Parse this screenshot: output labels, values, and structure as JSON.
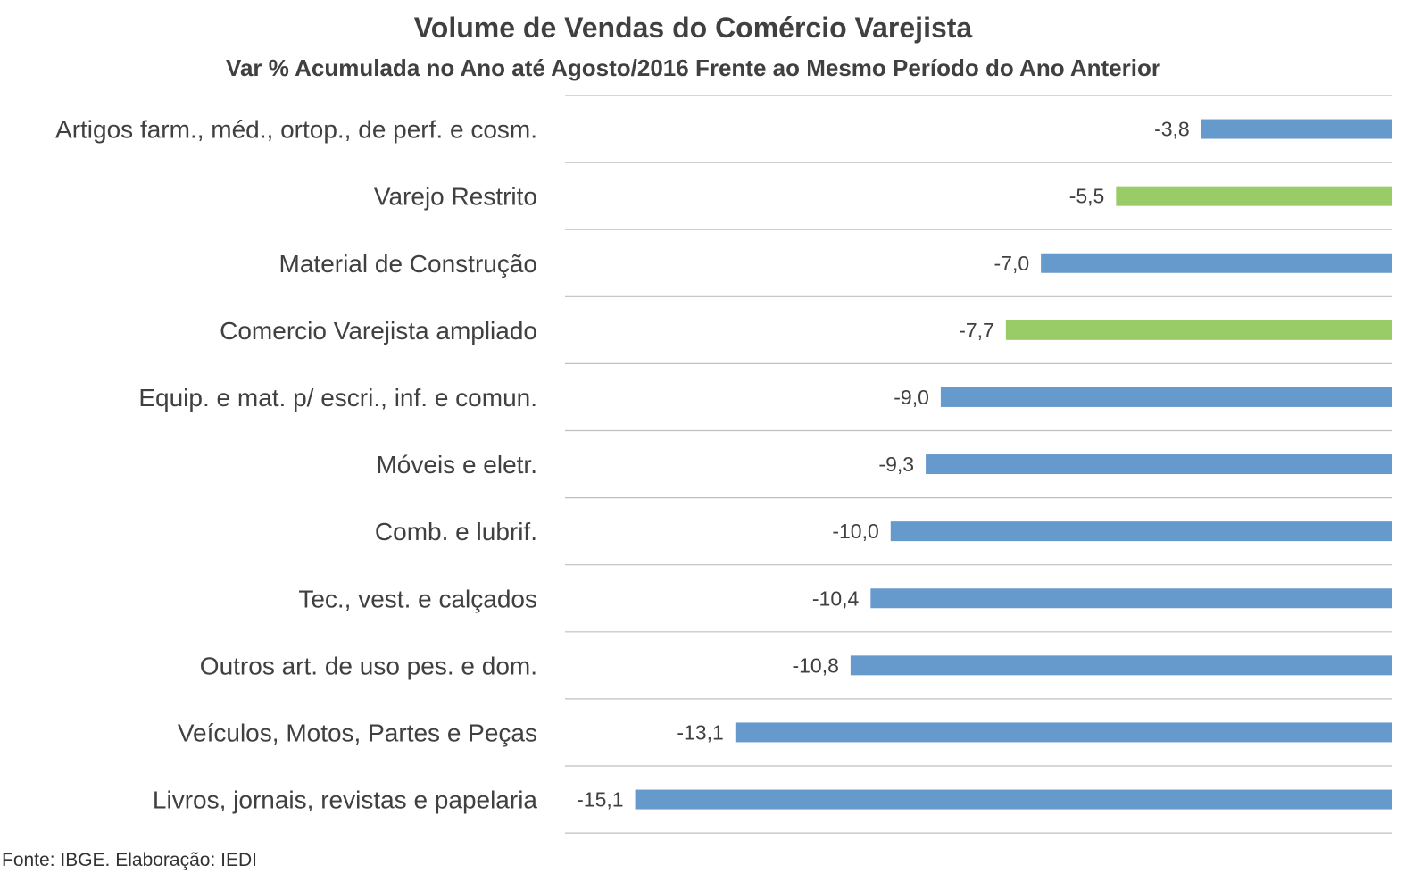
{
  "chart_data": {
    "type": "bar",
    "orientation": "horizontal",
    "title": "Volume de Vendas do Comércio Varejista",
    "subtitle": "Var % Acumulada no Ano até Agosto/2016 Frente ao Mesmo Período do Ano Anterior",
    "categories": [
      "Artigos farm., méd., ortop., de perf. e cosm.",
      "Varejo Restrito",
      "Material de Construção",
      "Comercio Varejista ampliado",
      "Equip. e mat. p/ escri., inf. e comun.",
      "Móveis e eletr.",
      "Comb. e lubrif.",
      "Tec., vest. e calçados",
      "Outros art. de uso pes. e dom.",
      "Veículos, Motos, Partes e Peças",
      "Livros, jornais, revistas e papelaria"
    ],
    "values": [
      -3.8,
      -5.5,
      -7.0,
      -7.7,
      -9.0,
      -9.3,
      -10.0,
      -10.4,
      -10.8,
      -13.1,
      -15.1
    ],
    "value_labels": [
      "-3,8",
      "-5,5",
      "-7,0",
      "-7,7",
      "-9,0",
      "-9,3",
      "-10,0",
      "-10,4",
      "-10,8",
      "-13,1",
      "-15,1"
    ],
    "highlighted": [
      false,
      true,
      false,
      true,
      false,
      false,
      false,
      false,
      false,
      false,
      false
    ],
    "xlim": [
      -16.5,
      0
    ],
    "grid": true,
    "legend": "none",
    "colors": {
      "default_bar": "#6699CC",
      "highlight_bar": "#99CC66",
      "gridline": "#BFBFBF",
      "text": "#404040"
    }
  },
  "source": "Fonte: IBGE. Elaboração: IEDI"
}
